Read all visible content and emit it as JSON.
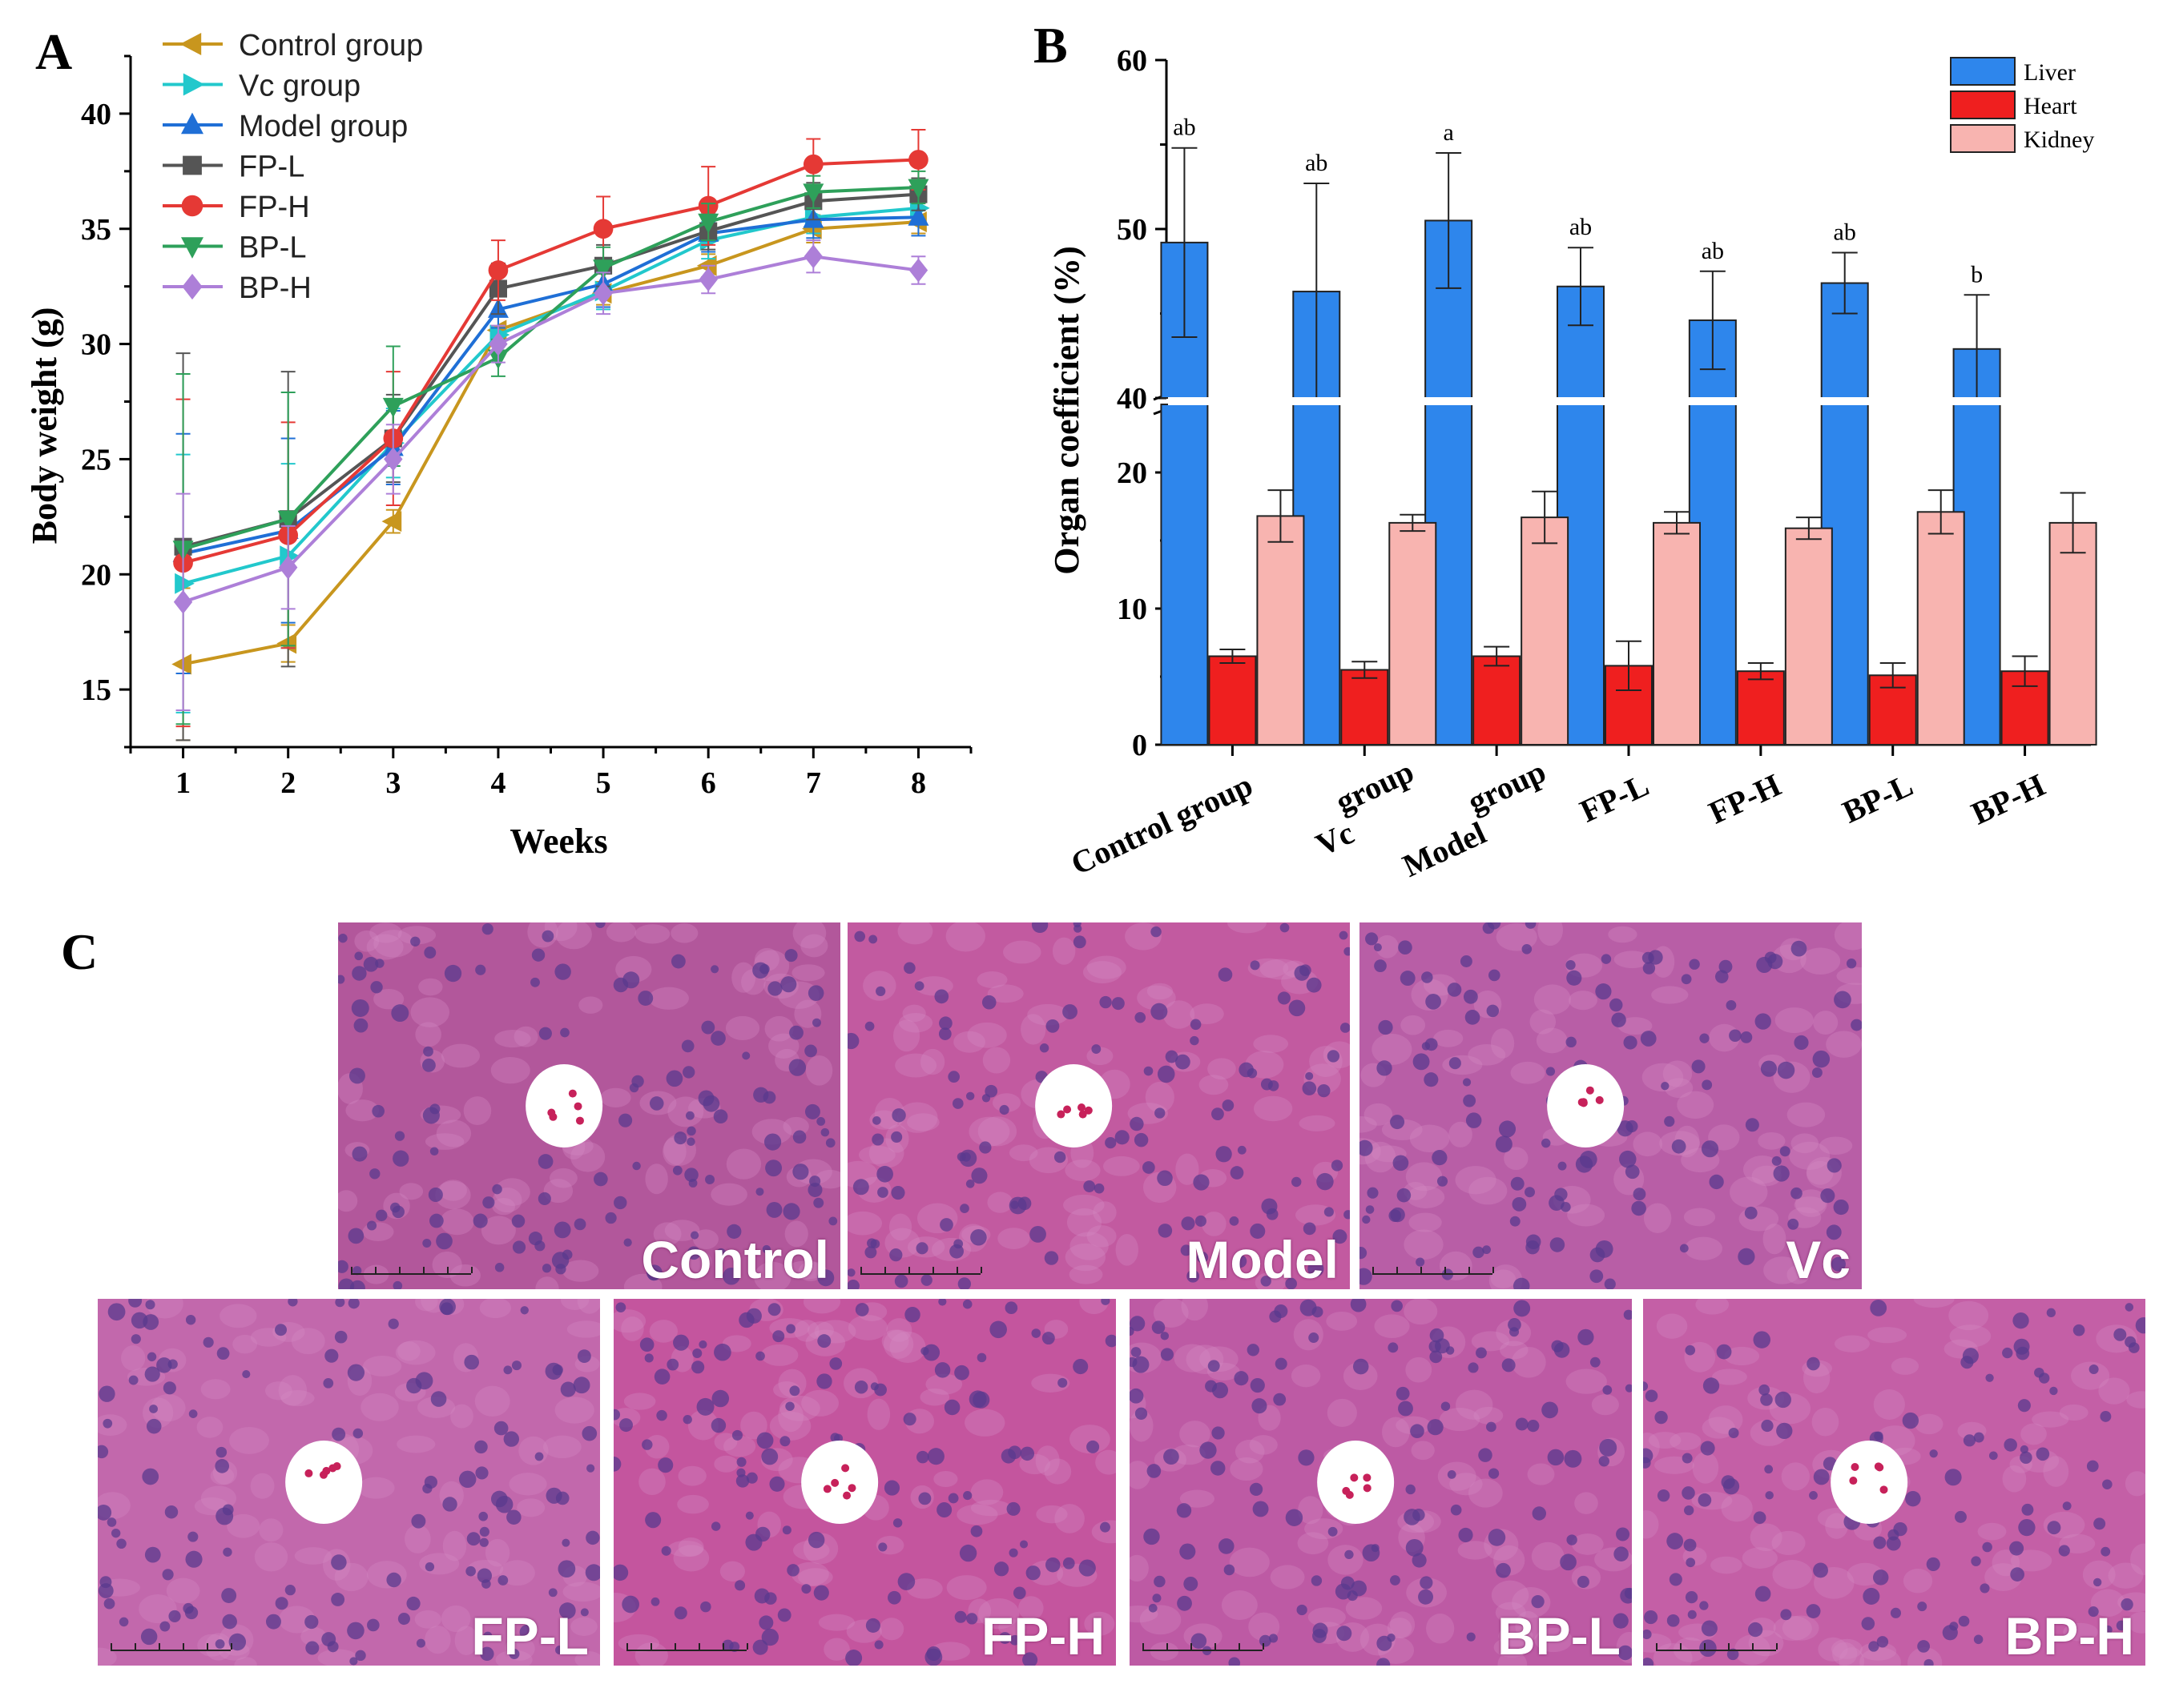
{
  "panels": {
    "a": "A",
    "b": "B",
    "c": "C"
  },
  "chart_data": [
    {
      "type": "line",
      "xlabel": "Weeks",
      "ylabel": "Body weight (g)",
      "x": [
        1,
        2,
        3,
        4,
        5,
        6,
        7,
        8
      ],
      "xlim": [
        0.5,
        8.5
      ],
      "ylim": [
        12.5,
        42.5
      ],
      "yticks": [
        15,
        20,
        25,
        30,
        35,
        40
      ],
      "series": [
        {
          "name": "Control group",
          "color": "#c8961e",
          "marker": "tri-left",
          "values": [
            16.1,
            17.0,
            22.3,
            30.6,
            32.2,
            33.4,
            35.0,
            35.3
          ],
          "err": [
            3.3,
            0.8,
            0.5,
            0.6,
            0.5,
            0.5,
            0.6,
            0.5
          ]
        },
        {
          "name": "Vc group",
          "color": "#22c8cc",
          "marker": "tri-right",
          "values": [
            19.6,
            20.8,
            25.7,
            30.4,
            32.3,
            34.5,
            35.5,
            35.9
          ],
          "err": [
            5.6,
            4.0,
            1.5,
            0.8,
            0.8,
            0.8,
            0.7,
            0.7
          ]
        },
        {
          "name": "Model group",
          "color": "#1f6fd6",
          "marker": "tri-up",
          "values": [
            20.9,
            21.9,
            25.5,
            31.5,
            32.6,
            34.8,
            35.4,
            35.5
          ],
          "err": [
            5.2,
            4.0,
            1.6,
            0.8,
            1.0,
            0.8,
            0.8,
            0.8
          ]
        },
        {
          "name": "FP-L",
          "color": "#555555",
          "marker": "square",
          "values": [
            21.2,
            22.4,
            25.9,
            32.4,
            33.4,
            34.9,
            36.2,
            36.5
          ],
          "err": [
            8.4,
            6.4,
            1.9,
            1.1,
            0.9,
            0.8,
            0.8,
            0.7
          ]
        },
        {
          "name": "FP-H",
          "color": "#e53935",
          "marker": "circle",
          "values": [
            20.5,
            21.7,
            25.9,
            33.2,
            35.0,
            36.0,
            37.8,
            38.0
          ],
          "err": [
            7.1,
            4.9,
            2.9,
            1.3,
            1.4,
            1.7,
            1.1,
            1.3
          ]
        },
        {
          "name": "BP-L",
          "color": "#2ea05a",
          "marker": "tri-down",
          "values": [
            21.1,
            22.4,
            27.3,
            29.4,
            33.3,
            35.3,
            36.6,
            36.8
          ],
          "err": [
            7.6,
            5.5,
            2.6,
            0.8,
            0.9,
            0.8,
            0.7,
            0.7
          ]
        },
        {
          "name": "BP-H",
          "color": "#ad7fd8",
          "marker": "diamond",
          "values": [
            18.8,
            20.3,
            25.0,
            30.0,
            32.2,
            32.8,
            33.8,
            33.2
          ],
          "err": [
            4.7,
            1.8,
            1.5,
            0.8,
            0.9,
            0.6,
            0.7,
            0.6
          ]
        }
      ]
    },
    {
      "type": "bar",
      "ylabel": "Organ coefficient (%)",
      "categories": [
        "Control group",
        "Vc  group",
        "Model  group",
        "FP-L",
        "FP-H",
        "BP-L",
        "BP-H"
      ],
      "category_lines": [
        [
          "Control group"
        ],
        [
          "Vc",
          "group"
        ],
        [
          "Model",
          "group"
        ],
        [
          "FP-L"
        ],
        [
          "FP-H"
        ],
        [
          "BP-L"
        ],
        [
          "BP-H"
        ]
      ],
      "axis_break": {
        "lower": [
          0,
          25
        ],
        "upper": [
          40,
          60
        ]
      },
      "yticks_lower": [
        0,
        10,
        20
      ],
      "yticks_upper": [
        40,
        50,
        60
      ],
      "series": [
        {
          "name": "Liver",
          "color": "#2e86ec",
          "values": [
            49.2,
            46.3,
            50.5,
            46.6,
            44.6,
            46.8,
            42.9
          ],
          "err": [
            5.6,
            6.4,
            4.0,
            2.3,
            2.9,
            1.8,
            3.2
          ]
        },
        {
          "name": "Heart",
          "color": "#ef1f1f",
          "values": [
            6.5,
            5.5,
            6.5,
            5.8,
            5.4,
            5.1,
            5.4
          ],
          "err": [
            0.5,
            0.6,
            0.7,
            1.8,
            0.6,
            0.9,
            1.1
          ]
        },
        {
          "name": "Kidney",
          "color": "#f8b4b0",
          "values": [
            16.8,
            16.3,
            16.7,
            16.3,
            15.9,
            17.1,
            16.3
          ],
          "err": [
            1.9,
            0.6,
            1.9,
            0.8,
            0.8,
            1.6,
            2.2
          ]
        }
      ],
      "annotations": [
        "ab",
        "ab",
        "a",
        "ab",
        "ab",
        "ab",
        "b"
      ]
    }
  ],
  "histology": {
    "images": [
      {
        "label": "Control",
        "tone": "#b2579b"
      },
      {
        "label": "Model",
        "tone": "#c25aa0"
      },
      {
        "label": "Vc",
        "tone": "#b85ea6"
      },
      {
        "label": "FP-L",
        "tone": "#c268ac"
      },
      {
        "label": "FP-H",
        "tone": "#c4559e"
      },
      {
        "label": "BP-L",
        "tone": "#bd5aa4"
      },
      {
        "label": "BP-H",
        "tone": "#c45fa6"
      }
    ]
  }
}
